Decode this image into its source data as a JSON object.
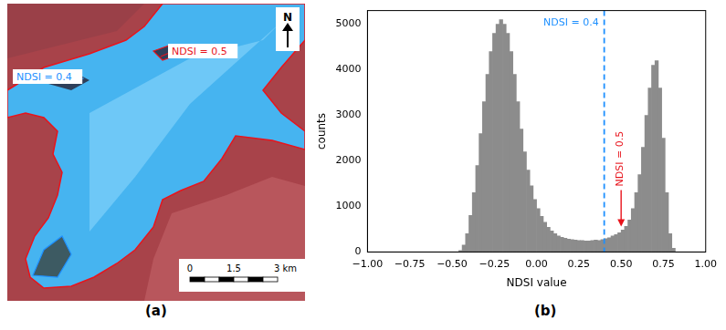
{
  "chart_data": {
    "type": "histogram",
    "panel": "(b)",
    "x_label": "NDSI value",
    "y_label": "counts",
    "bins": [
      -0.46,
      -0.44,
      -0.42,
      -0.4,
      -0.38,
      -0.36,
      -0.34,
      -0.32,
      -0.3,
      -0.28,
      -0.26,
      -0.24,
      -0.22,
      -0.2,
      -0.18,
      -0.16,
      -0.14,
      -0.12,
      -0.1,
      -0.08,
      -0.06,
      -0.04,
      -0.02,
      0.0,
      0.02,
      0.04,
      0.06,
      0.08,
      0.1,
      0.12,
      0.14,
      0.16,
      0.18,
      0.2,
      0.22,
      0.24,
      0.26,
      0.28,
      0.3,
      0.32,
      0.34,
      0.36,
      0.38,
      0.4,
      0.42,
      0.44,
      0.46,
      0.48,
      0.5,
      0.52,
      0.54,
      0.56,
      0.58,
      0.6,
      0.62,
      0.64,
      0.66,
      0.68,
      0.7,
      0.72,
      0.74,
      0.76,
      0.78,
      0.8,
      0.82
    ],
    "values": [
      30,
      150,
      400,
      800,
      1300,
      1900,
      2600,
      3300,
      3900,
      4400,
      4800,
      5000,
      5100,
      5000,
      4800,
      4400,
      3900,
      3300,
      2700,
      2200,
      1800,
      1450,
      1150,
      950,
      780,
      650,
      540,
      460,
      400,
      350,
      320,
      300,
      280,
      270,
      260,
      250,
      250,
      240,
      240,
      250,
      260,
      250,
      270,
      290,
      310,
      350,
      380,
      420,
      480,
      560,
      700,
      950,
      1300,
      1700,
      2300,
      3000,
      3600,
      4100,
      4200,
      3600,
      2500,
      1300,
      400,
      80
    ],
    "color": "#8c8c8c",
    "xlim": [
      -1,
      1
    ],
    "xticks": [
      {
        "value": -1,
        "label": "−1.00"
      },
      {
        "value": -0.75,
        "label": "−0.75"
      },
      {
        "value": -0.5,
        "label": "−0.50"
      },
      {
        "value": -0.25,
        "label": "−0.25"
      },
      {
        "value": 0,
        "label": "0.00"
      },
      {
        "value": 0.25,
        "label": "0.25"
      },
      {
        "value": 0.5,
        "label": "0.50"
      },
      {
        "value": 0.75,
        "label": "0.75"
      },
      {
        "value": 1,
        "label": "1.00"
      }
    ],
    "ylim": [
      0,
      5300
    ],
    "yticks": [
      0,
      1000,
      2000,
      3000,
      4000,
      5000
    ],
    "grid": false,
    "annotations": [
      {
        "x": 0.4,
        "label": "NDSI = 0.4",
        "color": "#1e90ff",
        "line_style": "dashed"
      },
      {
        "x": 0.5,
        "label": "NDSI = 0.5",
        "color": "#e8141c",
        "marker": "arrow"
      }
    ]
  },
  "map": {
    "panel": "(a)",
    "north": "N",
    "annotations": [
      {
        "label": "NDSI = 0.4",
        "color": "#1e90ff"
      },
      {
        "label": "NDSI = 0.5",
        "color": "#e8141c"
      }
    ],
    "scale_bar": {
      "ticks": [
        {
          "value": 0,
          "label": "0"
        },
        {
          "value": 1.5,
          "label": "1.5"
        },
        {
          "value": 3,
          "label": "3 km"
        }
      ]
    }
  }
}
